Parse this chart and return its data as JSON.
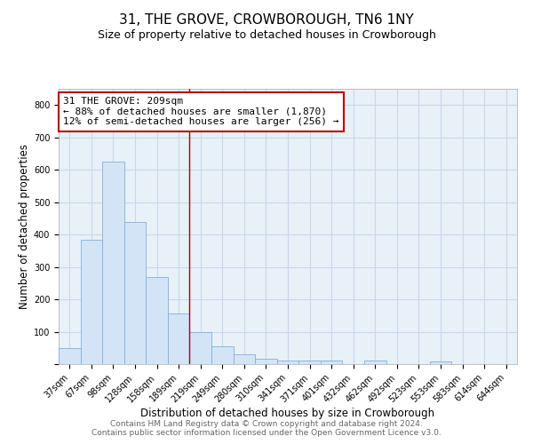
{
  "title": "31, THE GROVE, CROWBOROUGH, TN6 1NY",
  "subtitle": "Size of property relative to detached houses in Crowborough",
  "xlabel": "Distribution of detached houses by size in Crowborough",
  "ylabel": "Number of detached properties",
  "categories": [
    "37sqm",
    "67sqm",
    "98sqm",
    "128sqm",
    "158sqm",
    "189sqm",
    "219sqm",
    "249sqm",
    "280sqm",
    "310sqm",
    "341sqm",
    "371sqm",
    "401sqm",
    "432sqm",
    "462sqm",
    "492sqm",
    "523sqm",
    "553sqm",
    "583sqm",
    "614sqm",
    "644sqm"
  ],
  "values": [
    50,
    385,
    625,
    440,
    270,
    155,
    100,
    55,
    30,
    17,
    12,
    12,
    12,
    0,
    12,
    0,
    0,
    8,
    0,
    0,
    0
  ],
  "bar_color": "#d4e4f7",
  "bar_edge_color": "#7fb0d8",
  "bar_width": 1.0,
  "vline_x": 6.0,
  "vline_color": "#aa0000",
  "annotation_line1": "31 THE GROVE: 209sqm",
  "annotation_line2": "← 88% of detached houses are smaller (1,870)",
  "annotation_line3": "12% of semi-detached houses are larger (256) →",
  "annotation_box_color": "#ffffff",
  "annotation_box_edge_color": "#bb0000",
  "ylim": [
    0,
    850
  ],
  "yticks": [
    0,
    100,
    200,
    300,
    400,
    500,
    600,
    700,
    800
  ],
  "grid_color": "#c8d8ea",
  "bg_color": "#e8f0f8",
  "plot_area_bg": "#e8f0f8",
  "footer_line1": "Contains HM Land Registry data © Crown copyright and database right 2024.",
  "footer_line2": "Contains public sector information licensed under the Open Government Licence v3.0.",
  "title_fontsize": 11,
  "subtitle_fontsize": 9,
  "axis_label_fontsize": 8.5,
  "tick_fontsize": 7,
  "annotation_fontsize": 8,
  "footer_fontsize": 6.5
}
